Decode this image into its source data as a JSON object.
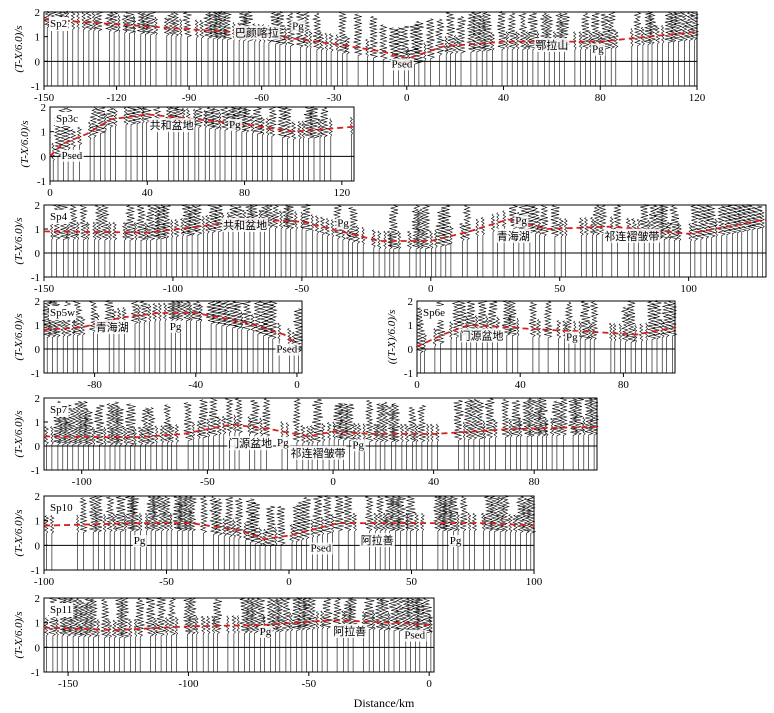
{
  "figure": {
    "x_axis_label": "Distance/km",
    "trace_color": "#000000",
    "pick_color": "#d62020",
    "panels": [
      {
        "id": "sp2",
        "label": "Sp2",
        "y_label": "(T-X/6.0)/s",
        "x_ticks": [
          -150,
          -120,
          -90,
          -60,
          -30,
          0,
          40,
          80,
          120
        ],
        "y_ticks": [
          -1,
          0,
          1,
          2
        ],
        "xlim": [
          -150,
          120
        ],
        "ylim": [
          -1,
          2
        ],
        "annotations": [
          {
            "text": "巴颜喀拉",
            "x": -62,
            "y": 1.0
          },
          {
            "text": "Pg",
            "x": -45,
            "y": 1.3
          },
          {
            "text": "Psed",
            "x": -2,
            "y": -0.25
          },
          {
            "text": "鄂拉山",
            "x": 60,
            "y": 0.5
          },
          {
            "text": "Pg",
            "x": 79,
            "y": 0.35
          }
        ],
        "picks": [
          [
            -150,
            1.7
          ],
          [
            -120,
            1.5
          ],
          [
            -90,
            1.3
          ],
          [
            -60,
            1.1
          ],
          [
            -30,
            0.7
          ],
          [
            -10,
            0.4
          ],
          [
            0,
            0.1
          ],
          [
            15,
            0.6
          ],
          [
            40,
            0.8
          ],
          [
            80,
            0.8
          ],
          [
            120,
            1.2
          ]
        ]
      },
      {
        "id": "sp3c",
        "label": "Sp3c",
        "y_label": "(T-X/6.0)/s",
        "x_ticks": [
          0,
          40,
          80,
          120
        ],
        "y_ticks": [
          -1,
          0,
          1,
          2
        ],
        "xlim": [
          0,
          125
        ],
        "ylim": [
          -1,
          2
        ],
        "annotations": [
          {
            "text": "共和盆地",
            "x": 50,
            "y": 1.1
          },
          {
            "text": "Pg",
            "x": 76,
            "y": 1.15
          },
          {
            "text": "Psed",
            "x": 9,
            "y": -0.1
          }
        ],
        "picks": [
          [
            0,
            0.0
          ],
          [
            5,
            0.5
          ],
          [
            15,
            0.9
          ],
          [
            25,
            1.5
          ],
          [
            40,
            1.7
          ],
          [
            60,
            1.5
          ],
          [
            80,
            1.3
          ],
          [
            100,
            1.0
          ],
          [
            125,
            1.2
          ]
        ]
      },
      {
        "id": "sp4",
        "label": "Sp4",
        "y_label": "(T-X/6.0)/s",
        "x_ticks": [
          -150,
          -100,
          -50,
          0,
          50,
          100
        ],
        "y_ticks": [
          -1,
          0,
          1,
          2
        ],
        "xlim": [
          -150,
          130
        ],
        "ylim": [
          -1,
          2
        ],
        "annotations": [
          {
            "text": "共和盆地",
            "x": -72,
            "y": 1.0
          },
          {
            "text": "Pg",
            "x": -34,
            "y": 1.1
          },
          {
            "text": "Pg",
            "x": 35,
            "y": 1.2
          },
          {
            "text": "青海湖",
            "x": 32,
            "y": 0.55
          },
          {
            "text": "祁连褶皱带",
            "x": 78,
            "y": 0.55
          }
        ],
        "picks": [
          [
            -150,
            0.9
          ],
          [
            -110,
            0.85
          ],
          [
            -90,
            1.1
          ],
          [
            -70,
            1.4
          ],
          [
            -50,
            1.3
          ],
          [
            -35,
            0.9
          ],
          [
            -20,
            0.5
          ],
          [
            0,
            0.5
          ],
          [
            15,
            0.9
          ],
          [
            30,
            1.4
          ],
          [
            45,
            1.0
          ],
          [
            70,
            1.1
          ],
          [
            100,
            0.8
          ],
          [
            130,
            1.4
          ]
        ]
      },
      {
        "id": "sp5w",
        "label": "Sp5w",
        "y_label": "(T-X/6.0)/s",
        "x_ticks": [
          -80,
          -40,
          0
        ],
        "y_ticks": [
          -1,
          0,
          1,
          2
        ],
        "xlim": [
          -100,
          2
        ],
        "ylim": [
          -1,
          2
        ],
        "annotations": [
          {
            "text": "青海湖",
            "x": -73,
            "y": 0.75
          },
          {
            "text": "Pg",
            "x": -48,
            "y": 0.8
          },
          {
            "text": "Psed",
            "x": -4,
            "y": -0.15
          }
        ],
        "picks": [
          [
            -100,
            0.8
          ],
          [
            -85,
            0.9
          ],
          [
            -70,
            1.3
          ],
          [
            -55,
            1.5
          ],
          [
            -40,
            1.5
          ],
          [
            -20,
            1.1
          ],
          [
            -5,
            0.6
          ],
          [
            0,
            0.2
          ]
        ]
      },
      {
        "id": "sp6e",
        "label": "Sp6e",
        "y_label": "((T-X)/6.0)/s",
        "x_ticks": [
          0,
          40,
          80
        ],
        "y_ticks": [
          -1,
          0,
          1,
          2
        ],
        "xlim": [
          0,
          100
        ],
        "ylim": [
          -1,
          2
        ],
        "annotations": [
          {
            "text": "门源盆地",
            "x": 25,
            "y": 0.4
          },
          {
            "text": "Pg",
            "x": 60,
            "y": 0.35
          }
        ],
        "picks": [
          [
            0,
            0.1
          ],
          [
            10,
            0.6
          ],
          [
            20,
            1.0
          ],
          [
            35,
            0.9
          ],
          [
            50,
            0.8
          ],
          [
            70,
            0.7
          ],
          [
            85,
            0.6
          ],
          [
            100,
            0.9
          ]
        ]
      },
      {
        "id": "sp7",
        "label": "Sp7",
        "y_label": "(T-X/6.0)/s",
        "x_ticks": [
          -100,
          -50,
          0,
          40,
          80
        ],
        "y_ticks": [
          -1,
          0,
          1,
          2
        ],
        "xlim": [
          -115,
          105
        ],
        "ylim": [
          -1,
          2
        ],
        "annotations": [
          {
            "text": "门源盆地",
            "x": -33,
            "y": -0.05
          },
          {
            "text": "Pg",
            "x": -20,
            "y": 0.0
          },
          {
            "text": "祁连褶皱带",
            "x": -6,
            "y": -0.45
          },
          {
            "text": "Pg",
            "x": 10,
            "y": -0.1
          }
        ],
        "picks": [
          [
            -115,
            0.4
          ],
          [
            -80,
            0.35
          ],
          [
            -60,
            0.5
          ],
          [
            -40,
            0.9
          ],
          [
            -25,
            0.7
          ],
          [
            -10,
            0.4
          ],
          [
            0,
            0.6
          ],
          [
            15,
            0.5
          ],
          [
            40,
            0.5
          ],
          [
            70,
            0.7
          ],
          [
            105,
            0.8
          ]
        ]
      },
      {
        "id": "sp10",
        "label": "Sp10",
        "y_label": "(T-X/6.0)/s",
        "x_ticks": [
          -100,
          -50,
          0,
          50,
          100
        ],
        "y_ticks": [
          -1,
          0,
          1,
          2
        ],
        "xlim": [
          -100,
          100
        ],
        "ylim": [
          -1,
          2
        ],
        "annotations": [
          {
            "text": "Pg",
            "x": -61,
            "y": 0.05
          },
          {
            "text": "Psed",
            "x": 13,
            "y": -0.25
          },
          {
            "text": "阿拉善",
            "x": 36,
            "y": 0.05
          },
          {
            "text": "Pg",
            "x": 68,
            "y": 0.05
          }
        ],
        "picks": [
          [
            -100,
            0.8
          ],
          [
            -60,
            0.9
          ],
          [
            -40,
            0.9
          ],
          [
            -20,
            0.6
          ],
          [
            -10,
            0.25
          ],
          [
            0,
            0.4
          ],
          [
            20,
            0.9
          ],
          [
            50,
            0.9
          ],
          [
            80,
            0.9
          ],
          [
            100,
            0.8
          ]
        ]
      },
      {
        "id": "sp11",
        "label": "Sp11",
        "y_label": "(T-X/6.0)/s",
        "x_ticks": [
          -150,
          -100,
          -50,
          0
        ],
        "y_ticks": [
          -1,
          0,
          1,
          2
        ],
        "xlim": [
          -160,
          2
        ],
        "ylim": [
          -1,
          2
        ],
        "annotations": [
          {
            "text": "Pg",
            "x": -68,
            "y": 0.5
          },
          {
            "text": "阿拉善",
            "x": -33,
            "y": 0.5
          },
          {
            "text": "Psed",
            "x": -6,
            "y": 0.35
          }
        ],
        "picks": [
          [
            -160,
            0.8
          ],
          [
            -130,
            0.7
          ],
          [
            -100,
            0.85
          ],
          [
            -70,
            0.9
          ],
          [
            -40,
            1.1
          ],
          [
            -15,
            1.0
          ],
          [
            0,
            0.9
          ]
        ]
      }
    ]
  }
}
